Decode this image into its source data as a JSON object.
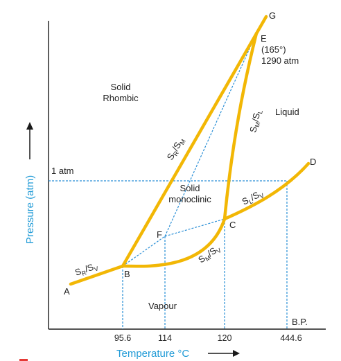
{
  "colors": {
    "curve": "#f2b705",
    "dashed": "#2a8fd6",
    "axis": "#1a1a1a",
    "axis_title": "#1f9ad6",
    "text": "#222222"
  },
  "axes": {
    "x_title_text": "Temperature ",
    "x_title_unit": "°C",
    "y_title": "Pressure (atm)",
    "x_ticks": [
      "95.6",
      "114",
      "120",
      "444.6"
    ],
    "one_atm": "1 atm",
    "bp": "B.P."
  },
  "points": {
    "A": "A",
    "B": "B",
    "C": "C",
    "D": "D",
    "E": "E",
    "F": "F",
    "G": "G"
  },
  "triple_point_E": {
    "temp": "(165°)",
    "pressure": "1290 atm"
  },
  "regions": {
    "rhombic_line1": "Solid",
    "rhombic_line2": "Rhombic",
    "monoclinic_line1": "Solid",
    "monoclinic_line2": "monoclinic",
    "liquid": "Liquid",
    "vapour": "Vapour"
  },
  "curve_labels": {
    "sr_sv": {
      "main1": "S",
      "sub1": "R",
      "sep": "/",
      "main2": "S",
      "sub2": "V"
    },
    "sr_sm": {
      "main1": "S",
      "sub1": "R",
      "sep": "/",
      "main2": "S",
      "sub2": "M"
    },
    "sm_sl": {
      "main1": "S",
      "sub1": "M",
      "sep": "/",
      "main2": "S",
      "sub2": "L"
    },
    "sm_sv": {
      "main1": "S",
      "sub1": "M",
      "sep": "/",
      "main2": "S",
      "sub2": "V"
    },
    "sl_sv": {
      "main1": "S",
      "sub1": "L",
      "sep": "/",
      "main2": "S",
      "sub2": "V"
    }
  }
}
